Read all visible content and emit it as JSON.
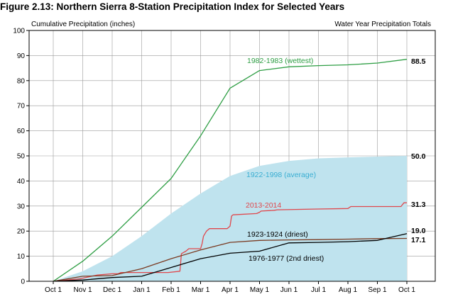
{
  "figure": {
    "title": "Figure 2.13: Northern Sierra 8-Station Precipitation Index for Selected Years"
  },
  "chart_data": {
    "type": "line",
    "ylabel": "Cumulative Precipitation (inches)",
    "right_header": "Water Year Precipitation Totals",
    "ylim": [
      0,
      100
    ],
    "yticks": [
      "0",
      "10",
      "20",
      "30",
      "40",
      "50",
      "60",
      "70",
      "80",
      "90",
      "100"
    ],
    "x_categories": [
      "Oct 1",
      "Nov 1",
      "Dec 1",
      "Jan 1",
      "Feb 1",
      "Mar 1",
      "Apr 1",
      "May 1",
      "Jun 1",
      "Jul 1",
      "Aug 1",
      "Sep 1",
      "Oct 1"
    ],
    "grid": true,
    "colors": {
      "wettest": "#2e9e44",
      "average_fill": "#bfe3ee",
      "average_label": "#3aaed2",
      "y2013": "#e0474c",
      "driest": "#7a3b22",
      "second_driest": "#000000",
      "grid": "#9a9a9a"
    },
    "series": [
      {
        "id": "wettest",
        "name": "1982-1983 (wettest)",
        "style": "line",
        "total": "88.5",
        "x": [
          0,
          1,
          2,
          3,
          4,
          5,
          6,
          7,
          8,
          9,
          10,
          11,
          12
        ],
        "y": [
          0,
          8,
          18,
          29.5,
          41,
          58,
          77,
          84,
          85.5,
          86,
          86.3,
          87,
          88.5
        ]
      },
      {
        "id": "average",
        "name": "1922-1998 (average)",
        "style": "area",
        "total": "50.0",
        "x": [
          0,
          1,
          2,
          3,
          4,
          5,
          6,
          7,
          8,
          9,
          10,
          11,
          12
        ],
        "y": [
          0,
          4,
          10,
          18,
          27,
          35,
          42,
          46,
          48,
          49,
          49.4,
          49.7,
          50
        ]
      },
      {
        "id": "y2013",
        "name": "2013-2014",
        "style": "step",
        "total": "31.3",
        "x": [
          0,
          0.9,
          1.5,
          2,
          2.2,
          2.3,
          3.0,
          3.9,
          4.3,
          4.35,
          4.5,
          4.6,
          5.0,
          5.05,
          5.1,
          5.2,
          5.3,
          5.9,
          6.0,
          6.05,
          6.1,
          6.9,
          7.0,
          7.05,
          7.5,
          7.6,
          9.0,
          10.0,
          10.1,
          11.8,
          11.9,
          12.0
        ],
        "y": [
          0,
          1,
          2.5,
          3,
          3,
          3.5,
          3.5,
          3.5,
          4,
          11,
          12,
          13,
          13,
          15,
          18,
          20,
          21,
          21,
          22,
          26,
          26.5,
          27,
          27.5,
          28,
          28.3,
          28.5,
          28.8,
          29,
          29.8,
          29.8,
          31.3,
          31.3
        ]
      },
      {
        "id": "driest",
        "name": "1923-1924 (driest)",
        "style": "line",
        "total": "17.1",
        "x": [
          0,
          1,
          2,
          3,
          4,
          5,
          6,
          7,
          8,
          9,
          10,
          11,
          12
        ],
        "y": [
          0,
          2,
          2.3,
          5,
          9,
          12.5,
          15.5,
          16.3,
          16.5,
          16.6,
          16.8,
          17.0,
          17.1
        ]
      },
      {
        "id": "second_driest",
        "name": "1976-1977 (2nd driest)",
        "style": "line",
        "total": "19.0",
        "x": [
          0,
          1,
          2,
          3,
          4,
          5,
          6,
          7,
          8,
          9,
          10,
          11,
          12
        ],
        "y": [
          0,
          0.5,
          1.5,
          2,
          5.5,
          9,
          11.2,
          12,
          15.3,
          15.5,
          15.8,
          16.3,
          19.0
        ]
      }
    ]
  }
}
